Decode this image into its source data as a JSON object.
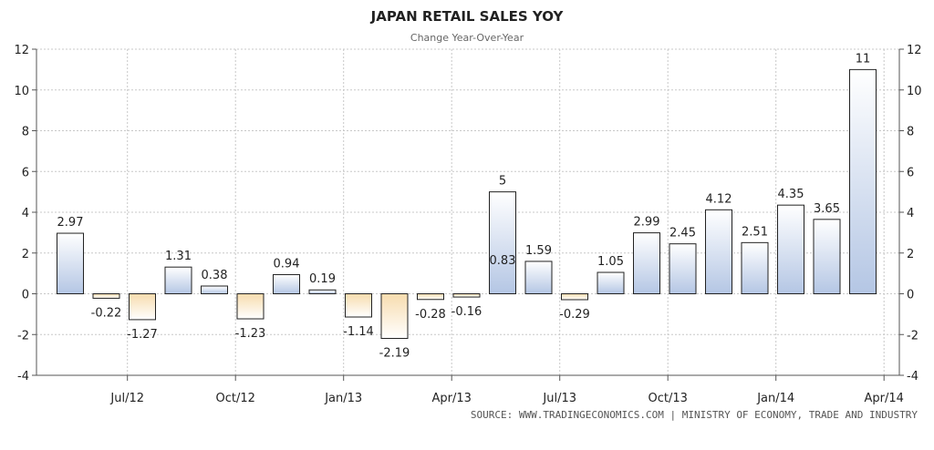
{
  "chart_data": {
    "type": "bar",
    "title": "JAPAN RETAIL SALES YOY",
    "subtitle": "Change Year-Over-Year",
    "values": [
      2.97,
      -0.22,
      -1.27,
      1.31,
      0.38,
      -1.23,
      0.94,
      0.19,
      -1.14,
      -2.19,
      -0.28,
      -0.16,
      5,
      1.59,
      -0.29,
      1.05,
      2.99,
      2.45,
      4.12,
      2.51,
      4.35,
      3.65,
      11
    ],
    "labels": [
      "2.97",
      "-0.22",
      "-1.27",
      "1.31",
      "0.38",
      "-1.23",
      "0.94",
      "0.19",
      "-1.14",
      "-2.19",
      "-0.28",
      "-0.16",
      "5",
      "1.59",
      "-0.29",
      "1.05",
      "2.99",
      "2.45",
      "4.12",
      "2.51",
      "4.35",
      "3.65",
      "11"
    ],
    "x_ticks": [
      "Jul/12",
      "Oct/12",
      "Jan/13",
      "Apr/13",
      "Jul/13",
      "Oct/13",
      "Jan/14",
      "Apr/14"
    ],
    "y_ticks": [
      "-4",
      "-2",
      "0",
      "2",
      "4",
      "6",
      "8",
      "10",
      "12"
    ],
    "ylim": [
      -4,
      12
    ],
    "grid": true,
    "extra_label": "0.83",
    "colors": {
      "positive_top": "#ffffff",
      "positive_bottom": "#b4c6e4",
      "negative_top": "#f7dcae",
      "negative_bottom": "#ffffff",
      "bar_stroke": "#222222",
      "grid": "#c8c8c8"
    }
  },
  "source": "SOURCE: WWW.TRADINGECONOMICS.COM | MINISTRY OF ECONOMY, TRADE AND INDUSTRY"
}
